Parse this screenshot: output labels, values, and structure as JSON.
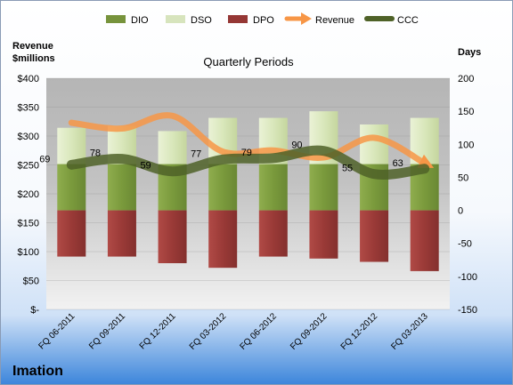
{
  "chart_data": {
    "type": "bar",
    "company": "Imation",
    "title": "Quarterly Periods",
    "left_axis_label": [
      "Revenue",
      "$millions"
    ],
    "right_axis_label": "Days",
    "left_ticks": [
      "$400",
      "$350",
      "$300",
      "$250",
      "$200",
      "$150",
      "$100",
      "$50",
      "$-"
    ],
    "right_ticks": [
      "200",
      "150",
      "100",
      "50",
      "0",
      "-50",
      "-100",
      "-150"
    ],
    "left_ylim": [
      0,
      400
    ],
    "right_ylim": [
      -150,
      200
    ],
    "categories": [
      "FQ 06-2011",
      "FQ 09-2011",
      "FQ 12-2011",
      "FQ 03-2012",
      "FQ 06-2012",
      "FQ 09-2012",
      "FQ 12-2012",
      "FQ 03-2013"
    ],
    "legend": [
      "DIO",
      "DSO",
      "DPO",
      "Revenue",
      "CCC"
    ],
    "series": [
      {
        "name": "DIO",
        "axis": "right",
        "color": "#77933c",
        "values": [
          70,
          70,
          70,
          70,
          70,
          70,
          70,
          70
        ]
      },
      {
        "name": "DSO",
        "axis": "right",
        "color": "#d7e4bd",
        "values": [
          55,
          58,
          50,
          70,
          70,
          80,
          60,
          70
        ]
      },
      {
        "name": "DPO",
        "axis": "right",
        "color": "#953735",
        "values": [
          -70,
          -70,
          -80,
          -87,
          -70,
          -73,
          -78,
          -92
        ]
      },
      {
        "name": "Revenue",
        "axis": "left",
        "color": "#f79646",
        "values": [
          323,
          313,
          335,
          273,
          275,
          263,
          297,
          253
        ]
      },
      {
        "name": "CCC",
        "axis": "right",
        "color": "#4f6228",
        "values": [
          69,
          78,
          59,
          77,
          79,
          90,
          55,
          63
        ],
        "labels": [
          "69",
          "78",
          "59",
          "77",
          "79",
          "90",
          "55",
          "63"
        ]
      }
    ]
  }
}
